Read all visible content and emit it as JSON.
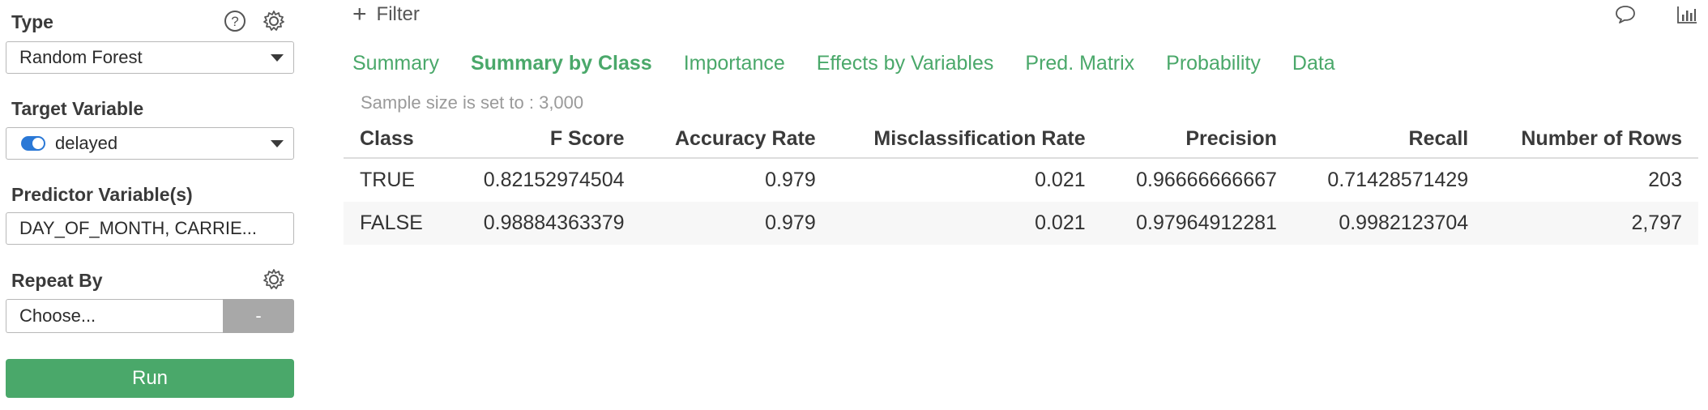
{
  "sidebar": {
    "type": {
      "label": "Type",
      "value": "Random Forest"
    },
    "target": {
      "label": "Target Variable",
      "value": "delayed"
    },
    "predictors": {
      "label": "Predictor Variable(s)",
      "value": "DAY_OF_MONTH, CARRIE..."
    },
    "repeat_by": {
      "label": "Repeat By",
      "placeholder": "Choose...",
      "button": "-"
    },
    "run_label": "Run"
  },
  "main": {
    "filter_label": "Filter",
    "tabs": [
      {
        "label": "Summary",
        "active": false
      },
      {
        "label": "Summary by Class",
        "active": true
      },
      {
        "label": "Importance",
        "active": false
      },
      {
        "label": "Effects by Variables",
        "active": false
      },
      {
        "label": "Pred. Matrix",
        "active": false
      },
      {
        "label": "Probability",
        "active": false
      },
      {
        "label": "Data",
        "active": false
      }
    ],
    "sample_note": "Sample size is set to : 3,000",
    "table": {
      "headers": [
        "Class",
        "F Score",
        "Accuracy Rate",
        "Misclassification Rate",
        "Precision",
        "Recall",
        "Number of Rows"
      ],
      "rows": [
        [
          "TRUE",
          "0.82152974504",
          "0.979",
          "0.021",
          "0.96666666667",
          "0.71428571429",
          "203"
        ],
        [
          "FALSE",
          "0.98884363379",
          "0.979",
          "0.021",
          "0.97964912281",
          "0.9982123704",
          "2,797"
        ]
      ]
    }
  },
  "icons": {
    "help": "help-icon",
    "settings": "gear-icon",
    "comment": "comment-icon",
    "chart": "bar-chart-icon"
  },
  "colors": {
    "accent_green": "#4aa86a",
    "toggle_blue": "#2a78d6",
    "disabled_button": "#a8a8a8"
  }
}
